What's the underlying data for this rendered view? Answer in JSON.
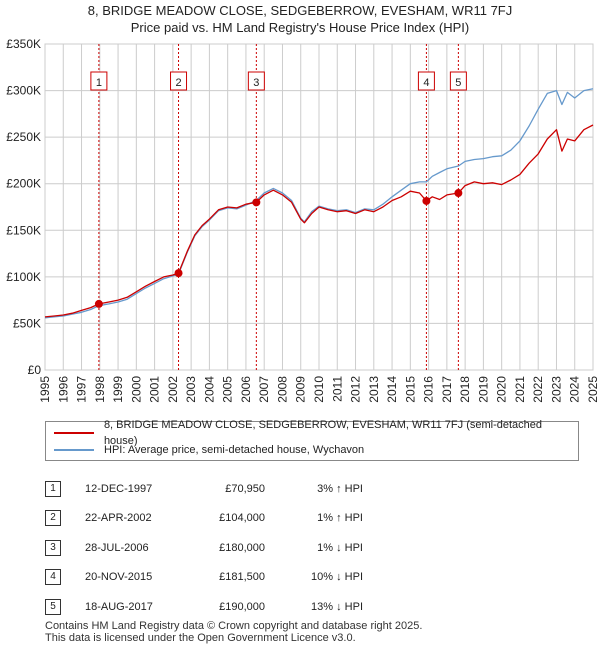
{
  "title_line1": "8, BRIDGE MEADOW CLOSE, SEDGEBERROW, EVESHAM, WR11 7FJ",
  "title_line2": "Price paid vs. HM Land Registry's House Price Index (HPI)",
  "legend": {
    "entry1": "8, BRIDGE MEADOW CLOSE, SEDGEBERROW, EVESHAM, WR11 7FJ (semi-detached house)",
    "entry2": "HPI: Average price, semi-detached house, Wychavon"
  },
  "colors": {
    "property": "#cc0000",
    "hpi": "#6699cc",
    "marker_line": "#cc0000",
    "grid": "#cccccc"
  },
  "sales": [
    {
      "num": "1",
      "date": "12-DEC-1997",
      "price": "£70,950",
      "hpi": "3% ↑ HPI"
    },
    {
      "num": "2",
      "date": "22-APR-2002",
      "price": "£104,000",
      "hpi": "1% ↑ HPI"
    },
    {
      "num": "3",
      "date": "28-JUL-2006",
      "price": "£180,000",
      "hpi": "1% ↓ HPI"
    },
    {
      "num": "4",
      "date": "20-NOV-2015",
      "price": "£181,500",
      "hpi": "10% ↓ HPI"
    },
    {
      "num": "5",
      "date": "18-AUG-2017",
      "price": "£190,000",
      "hpi": "13% ↓ HPI"
    }
  ],
  "footer_line1": "Contains HM Land Registry data © Crown copyright and database right 2025.",
  "footer_line2": "This data is licensed under the Open Government Licence v3.0.",
  "chart_data": {
    "type": "line",
    "title": "8, BRIDGE MEADOW CLOSE, SEDGEBERROW, EVESHAM, WR11 7FJ",
    "subtitle": "Price paid vs. HM Land Registry's House Price Index (HPI)",
    "xlabel": "",
    "ylabel": "",
    "xlim": [
      1995,
      2025
    ],
    "ylim": [
      0,
      350000
    ],
    "x_ticks": [
      "1995",
      "1996",
      "1997",
      "1998",
      "1999",
      "2000",
      "2001",
      "2002",
      "2003",
      "2004",
      "2005",
      "2006",
      "2007",
      "2008",
      "2009",
      "2010",
      "2011",
      "2012",
      "2013",
      "2014",
      "2015",
      "2016",
      "2017",
      "2018",
      "2019",
      "2020",
      "2021",
      "2022",
      "2023",
      "2024",
      "2025"
    ],
    "y_ticks": [
      {
        "value": 0,
        "label": "£0"
      },
      {
        "value": 50000,
        "label": "£50K"
      },
      {
        "value": 100000,
        "label": "£100K"
      },
      {
        "value": 150000,
        "label": "£150K"
      },
      {
        "value": 200000,
        "label": "£200K"
      },
      {
        "value": 250000,
        "label": "£250K"
      },
      {
        "value": 300000,
        "label": "£300K"
      },
      {
        "value": 350000,
        "label": "£350K"
      }
    ],
    "grid": true,
    "legend_position": "below chart",
    "series": [
      {
        "name": "8, BRIDGE MEADOW CLOSE, SEDGEBERROW, EVESHAM, WR11 7FJ (semi-detached house)",
        "color": "#cc0000",
        "x": [
          1995.0,
          1995.5,
          1996.0,
          1996.5,
          1997.0,
          1997.5,
          1997.95,
          1998.5,
          1999.0,
          1999.5,
          2000.0,
          2000.5,
          2001.0,
          2001.5,
          2002.0,
          2002.31,
          2002.8,
          2003.2,
          2003.6,
          2004.0,
          2004.5,
          2005.0,
          2005.5,
          2006.0,
          2006.57,
          2007.0,
          2007.5,
          2008.0,
          2008.5,
          2009.0,
          2009.2,
          2009.6,
          2010.0,
          2010.5,
          2011.0,
          2011.5,
          2012.0,
          2012.5,
          2013.0,
          2013.5,
          2014.0,
          2014.5,
          2015.0,
          2015.5,
          2015.88,
          2016.2,
          2016.6,
          2017.0,
          2017.63,
          2018.0,
          2018.5,
          2019.0,
          2019.5,
          2020.0,
          2020.5,
          2021.0,
          2021.5,
          2022.0,
          2022.5,
          2023.0,
          2023.3,
          2023.6,
          2024.0,
          2024.5,
          2025.0
        ],
        "y": [
          57000,
          58000,
          59000,
          61000,
          64000,
          67000,
          70950,
          73000,
          75000,
          78000,
          84000,
          90000,
          95000,
          100000,
          102000,
          104000,
          128000,
          145000,
          155000,
          162000,
          172000,
          175000,
          174000,
          178000,
          180000,
          188000,
          193000,
          188000,
          180000,
          162000,
          158000,
          168000,
          175000,
          172000,
          170000,
          171000,
          168000,
          172000,
          170000,
          175000,
          182000,
          186000,
          192000,
          190000,
          181500,
          186000,
          183000,
          188000,
          190000,
          198000,
          202000,
          200000,
          201000,
          199000,
          204000,
          210000,
          222000,
          232000,
          248000,
          258000,
          235000,
          248000,
          246000,
          258000,
          263000
        ]
      },
      {
        "name": "HPI: Average price, semi-detached house, Wychavon",
        "color": "#6699cc",
        "x": [
          1995.0,
          1995.5,
          1996.0,
          1996.5,
          1997.0,
          1997.5,
          1997.95,
          1998.5,
          1999.0,
          1999.5,
          2000.0,
          2000.5,
          2001.0,
          2001.5,
          2002.0,
          2002.31,
          2002.8,
          2003.2,
          2003.6,
          2004.0,
          2004.5,
          2005.0,
          2005.5,
          2006.0,
          2006.57,
          2007.0,
          2007.5,
          2008.0,
          2008.5,
          2009.0,
          2009.2,
          2009.6,
          2010.0,
          2010.5,
          2011.0,
          2011.5,
          2012.0,
          2012.5,
          2013.0,
          2013.5,
          2014.0,
          2014.5,
          2015.0,
          2015.5,
          2015.88,
          2016.2,
          2016.6,
          2017.0,
          2017.63,
          2018.0,
          2018.5,
          2019.0,
          2019.5,
          2020.0,
          2020.5,
          2021.0,
          2021.5,
          2022.0,
          2022.5,
          2023.0,
          2023.3,
          2023.6,
          2024.0,
          2024.5,
          2025.0
        ],
        "y": [
          56000,
          57000,
          58000,
          60000,
          62000,
          65000,
          69000,
          71000,
          73000,
          76000,
          82000,
          88000,
          93000,
          98000,
          101000,
          103000,
          127000,
          144000,
          154000,
          161000,
          171000,
          174000,
          173000,
          177000,
          182000,
          190000,
          195000,
          190000,
          182000,
          163000,
          159000,
          170000,
          176000,
          173000,
          171000,
          172000,
          169000,
          173000,
          172000,
          178000,
          186000,
          193000,
          200000,
          202000,
          202000,
          208000,
          212000,
          216000,
          219000,
          224000,
          226000,
          227000,
          229000,
          230000,
          236000,
          246000,
          262000,
          280000,
          297000,
          300000,
          285000,
          298000,
          292000,
          300000,
          302000
        ]
      }
    ],
    "sale_markers": [
      {
        "label": "1",
        "x": 1997.95,
        "y": 70950
      },
      {
        "label": "2",
        "x": 2002.31,
        "y": 104000
      },
      {
        "label": "3",
        "x": 2006.57,
        "y": 180000
      },
      {
        "label": "4",
        "x": 2015.88,
        "y": 181500
      },
      {
        "label": "5",
        "x": 2017.63,
        "y": 190000
      }
    ]
  }
}
